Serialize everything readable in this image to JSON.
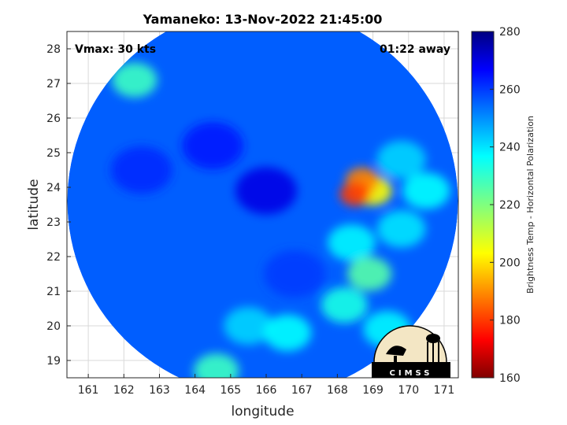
{
  "chart_data": {
    "type": "heatmap",
    "title": "Yamaneko: 13-Nov-2022 21:45:00",
    "xlabel": "longitude",
    "ylabel": "latitude",
    "xlim": [
      160.4,
      171.4
    ],
    "ylim": [
      18.5,
      28.5
    ],
    "xticks": [
      161,
      162,
      163,
      164,
      165,
      166,
      167,
      168,
      169,
      170,
      171
    ],
    "yticks": [
      19,
      20,
      21,
      22,
      23,
      24,
      25,
      26,
      27,
      28
    ],
    "grid": true,
    "annotations": {
      "vmax": "Vmax: 30 kts",
      "time_away": "01:22 away"
    },
    "colorbar": {
      "label": "Brightness Temp - Horizontal Polarization",
      "min": 160,
      "max": 280,
      "ticks": [
        160,
        180,
        200,
        220,
        240,
        260,
        280
      ],
      "colormap": "jet"
    },
    "swath": {
      "center_lon": 165.9,
      "center_lat": 23.6,
      "background_value": 254
    },
    "features": [
      {
        "lon": 166.0,
        "lat": 23.9,
        "value": 268
      },
      {
        "lon": 164.5,
        "lat": 25.2,
        "value": 262
      },
      {
        "lon": 162.5,
        "lat": 24.5,
        "value": 260
      },
      {
        "lon": 166.8,
        "lat": 21.5,
        "value": 258
      },
      {
        "lon": 169.8,
        "lat": 24.8,
        "value": 240
      },
      {
        "lon": 170.5,
        "lat": 23.9,
        "value": 235
      },
      {
        "lon": 169.0,
        "lat": 23.9,
        "value": 205
      },
      {
        "lon": 168.7,
        "lat": 24.2,
        "value": 190
      },
      {
        "lon": 168.5,
        "lat": 23.8,
        "value": 182
      },
      {
        "lon": 168.9,
        "lat": 21.5,
        "value": 225
      },
      {
        "lon": 168.2,
        "lat": 20.6,
        "value": 232
      },
      {
        "lon": 169.8,
        "lat": 22.8,
        "value": 238
      },
      {
        "lon": 168.4,
        "lat": 22.4,
        "value": 236
      },
      {
        "lon": 165.5,
        "lat": 20.0,
        "value": 240
      },
      {
        "lon": 166.6,
        "lat": 19.8,
        "value": 235
      },
      {
        "lon": 164.6,
        "lat": 18.7,
        "value": 228
      },
      {
        "lon": 169.4,
        "lat": 19.9,
        "value": 236
      },
      {
        "lon": 162.3,
        "lat": 27.1,
        "value": 228
      }
    ]
  },
  "logo": {
    "text": "CIMSS"
  },
  "colors": {
    "background": "#ffffff",
    "axis": "#262626",
    "grid": "#d9d9d9"
  }
}
